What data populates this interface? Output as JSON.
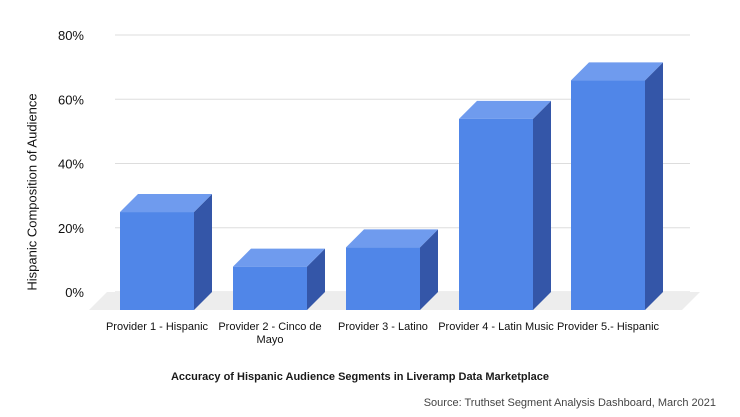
{
  "chart_data": {
    "type": "bar",
    "title": "",
    "xlabel": "",
    "ylabel": "Hispanic Composition of Audience",
    "categories": [
      "Provider 1 - Hispanic",
      "Provider 2 - Cinco de Mayo",
      "Provider 3 - Latino",
      "Provider 4 - Latin Music",
      "Provider 5.- Hispanic"
    ],
    "values": [
      28,
      11,
      17,
      57,
      69
    ],
    "unit": "%",
    "ylim": [
      0,
      80
    ],
    "yticks": [
      "0%",
      "20%",
      "40%",
      "60%",
      "80%"
    ],
    "grid": true,
    "legend": "none",
    "colors": {
      "bar_front": "#5086E8",
      "bar_top": "#6F9BEE",
      "bar_side": "#3456A8",
      "floor": "#EDEDED",
      "grid": "#DDDDDD"
    }
  },
  "caption": "Accuracy of Hispanic Audience Segments in Liveramp Data Marketplace",
  "source": "Source: Truthset Segment Analysis Dashboard, March 2021"
}
